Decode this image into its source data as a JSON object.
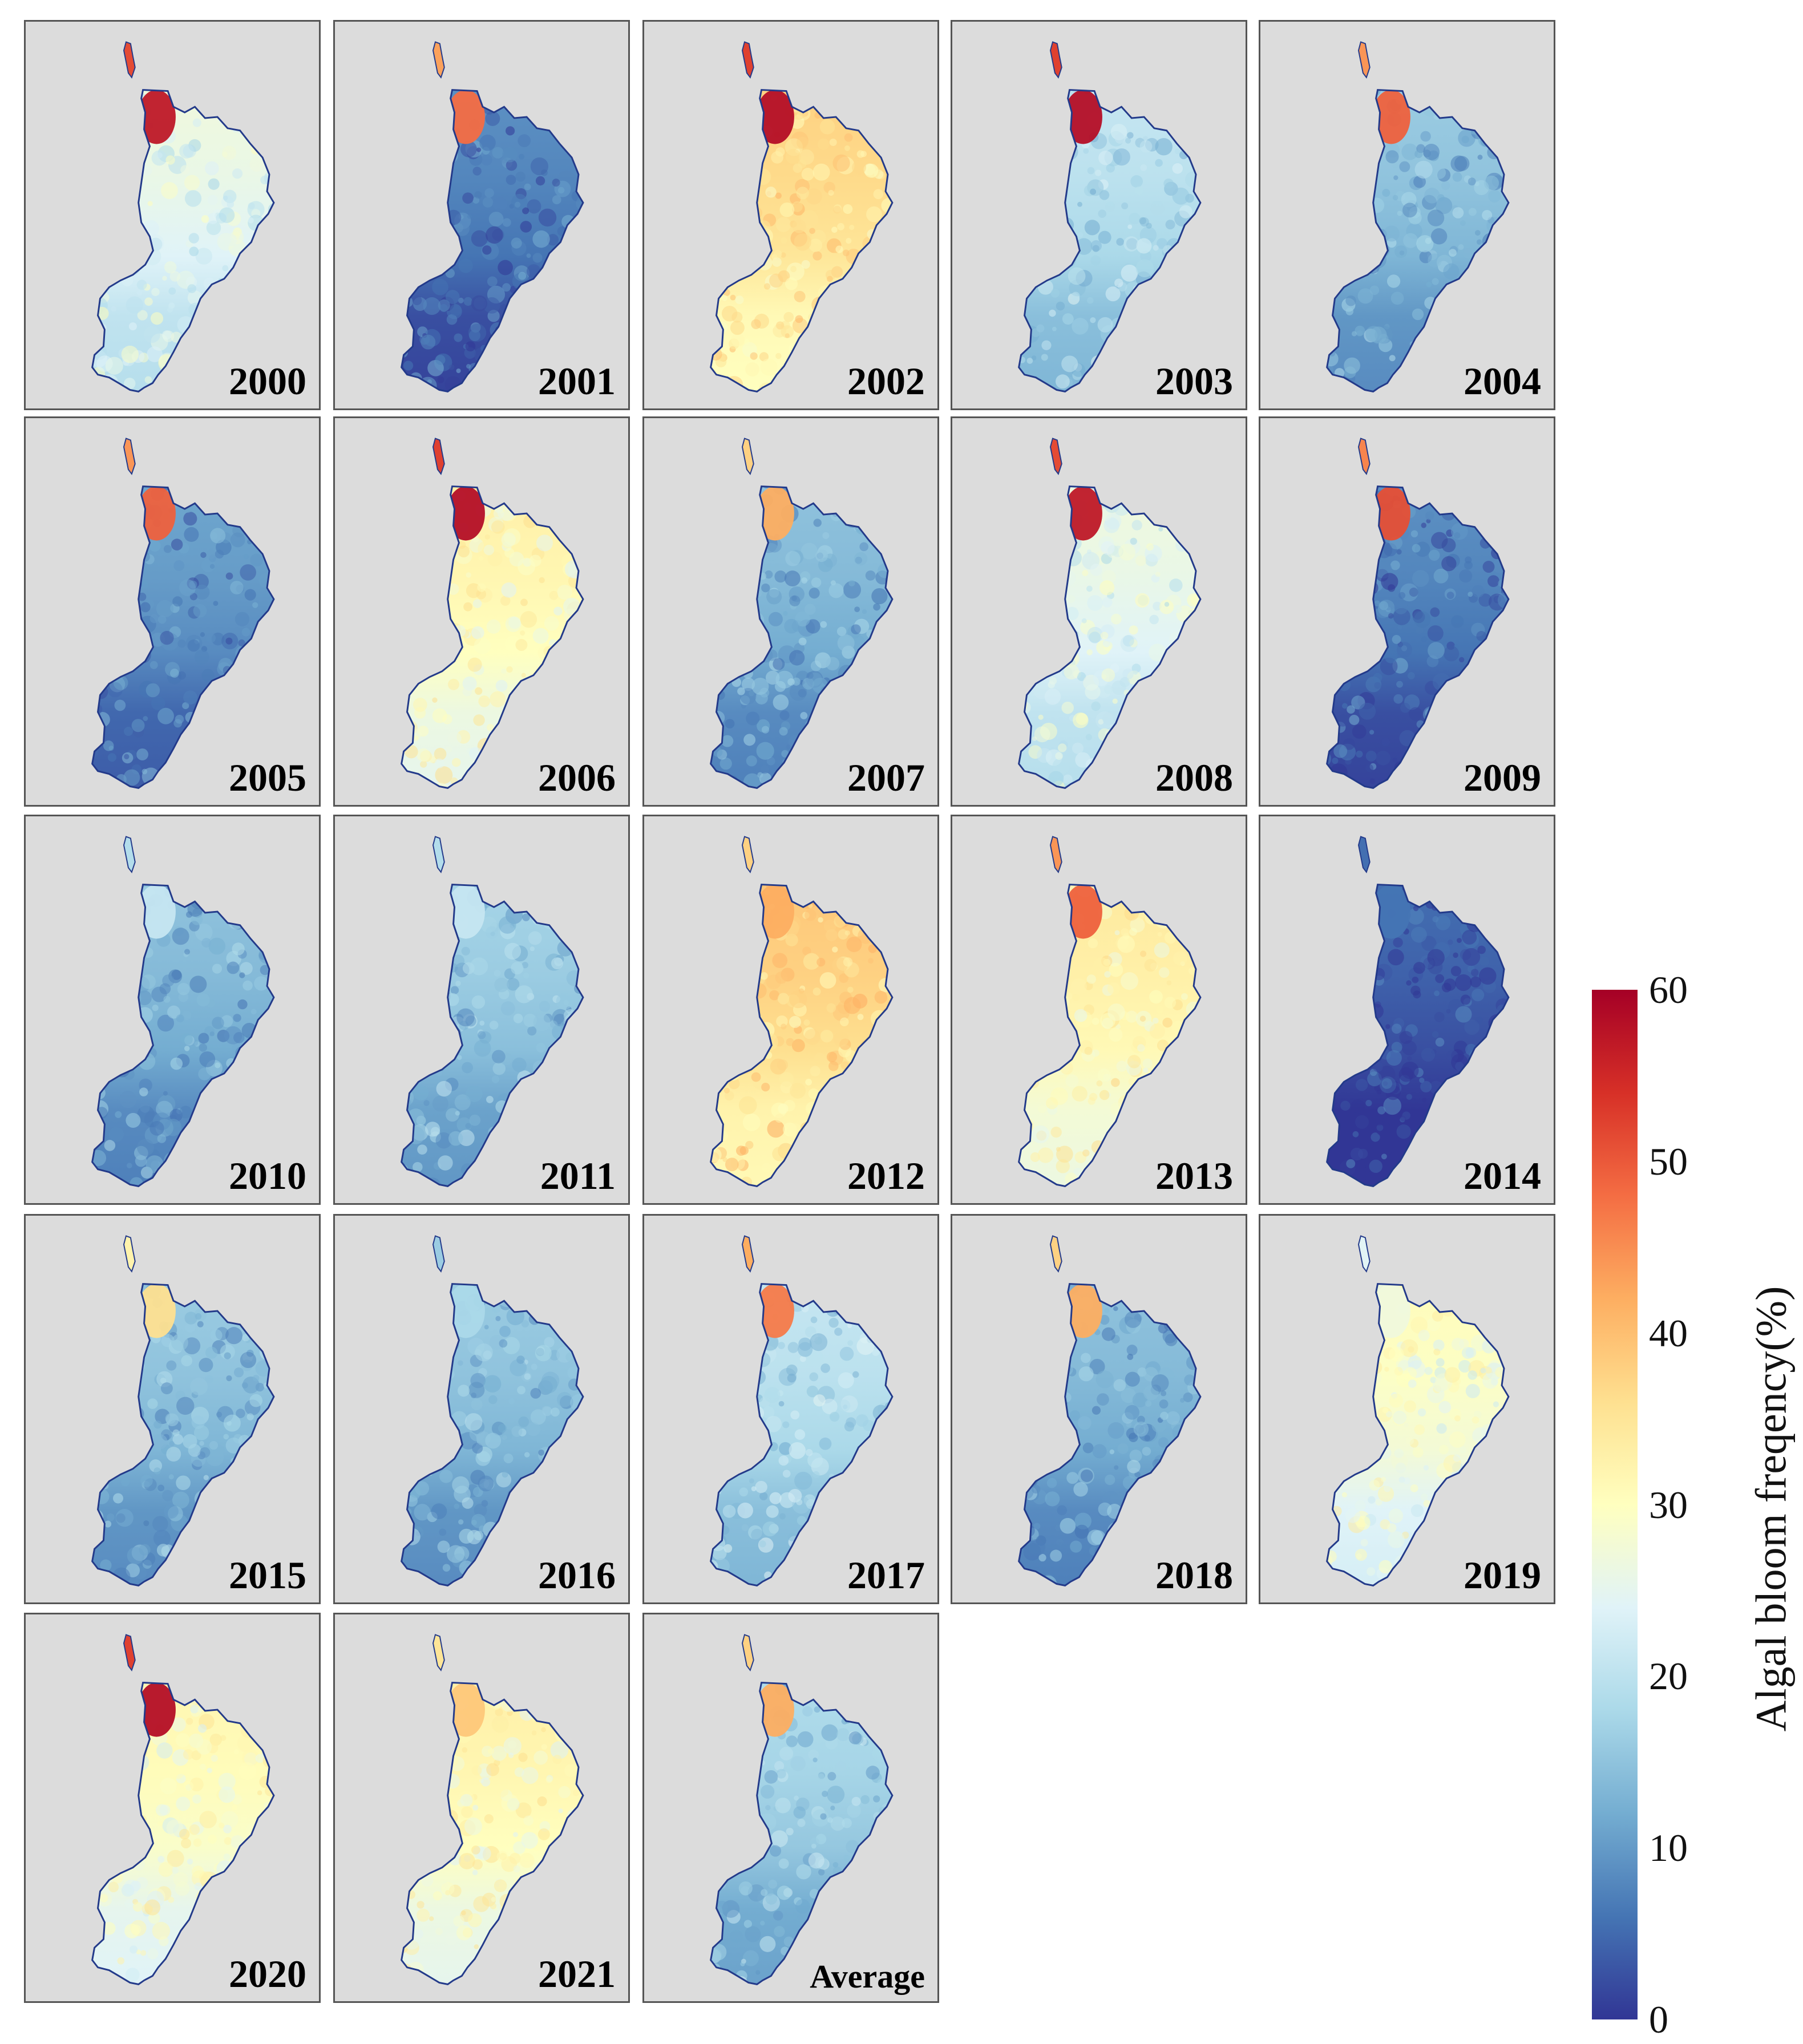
{
  "figure": {
    "panels": [
      {
        "label": "2000",
        "intensity": 0.4,
        "north_bloom": 0.95
      },
      {
        "label": "2001",
        "intensity": 0.1,
        "north_bloom": 0.8
      },
      {
        "label": "2002",
        "intensity": 0.58,
        "north_bloom": 0.97
      },
      {
        "label": "2003",
        "intensity": 0.3,
        "north_bloom": 0.97
      },
      {
        "label": "2004",
        "intensity": 0.22,
        "north_bloom": 0.82
      },
      {
        "label": "2005",
        "intensity": 0.14,
        "north_bloom": 0.82
      },
      {
        "label": "2006",
        "intensity": 0.5,
        "north_bloom": 0.97
      },
      {
        "label": "2007",
        "intensity": 0.2,
        "north_bloom": 0.7
      },
      {
        "label": "2008",
        "intensity": 0.4,
        "north_bloom": 0.95
      },
      {
        "label": "2009",
        "intensity": 0.1,
        "north_bloom": 0.85
      },
      {
        "label": "2010",
        "intensity": 0.2,
        "north_bloom": 0.35
      },
      {
        "label": "2011",
        "intensity": 0.24,
        "north_bloom": 0.35
      },
      {
        "label": "2012",
        "intensity": 0.6,
        "north_bloom": 0.7
      },
      {
        "label": "2013",
        "intensity": 0.52,
        "north_bloom": 0.82
      },
      {
        "label": "2014",
        "intensity": 0.04,
        "north_bloom": 0.1
      },
      {
        "label": "2015",
        "intensity": 0.22,
        "north_bloom": 0.6
      },
      {
        "label": "2016",
        "intensity": 0.22,
        "north_bloom": 0.3
      },
      {
        "label": "2017",
        "intensity": 0.3,
        "north_bloom": 0.78
      },
      {
        "label": "2018",
        "intensity": 0.2,
        "north_bloom": 0.7
      },
      {
        "label": "2019",
        "intensity": 0.46,
        "north_bloom": 0.45
      },
      {
        "label": "2020",
        "intensity": 0.48,
        "north_bloom": 0.97
      },
      {
        "label": "2021",
        "intensity": 0.5,
        "north_bloom": 0.65
      },
      {
        "label": "Average",
        "intensity": 0.26,
        "north_bloom": 0.7
      }
    ],
    "colorbar": {
      "label": "Algal bloom freqency(%)",
      "min": 0,
      "max": 60,
      "ticks": [
        "0",
        "10",
        "20",
        "30",
        "40",
        "50",
        "60"
      ],
      "colors": [
        "#313695",
        "#4575b4",
        "#74add1",
        "#abd9e9",
        "#e0f3f8",
        "#ffffbf",
        "#fee090",
        "#fdae61",
        "#f46d43",
        "#d73027",
        "#a50026"
      ]
    }
  }
}
